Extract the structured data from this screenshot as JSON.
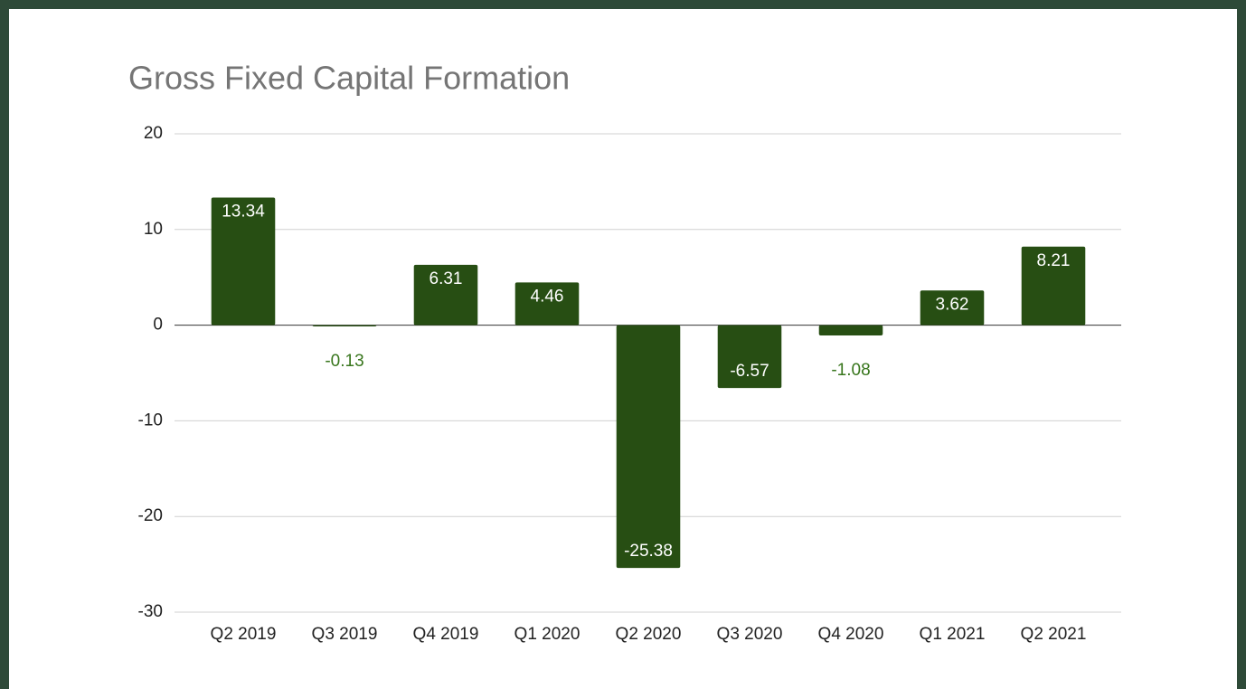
{
  "chart_data": {
    "type": "bar",
    "title": "Gross Fixed Capital Formation",
    "categories": [
      "Q2 2019",
      "Q3 2019",
      "Q4 2019",
      "Q1 2020",
      "Q2 2020",
      "Q3 2020",
      "Q4 2020",
      "Q1 2021",
      "Q2 2021"
    ],
    "values": [
      13.34,
      -0.13,
      6.31,
      4.46,
      -25.38,
      -6.57,
      -1.08,
      3.62,
      8.21
    ],
    "color": "#274e13",
    "ylim": [
      -30,
      20
    ],
    "yticks": [
      20,
      10,
      0,
      -10,
      -20,
      -30
    ],
    "grid": true
  }
}
